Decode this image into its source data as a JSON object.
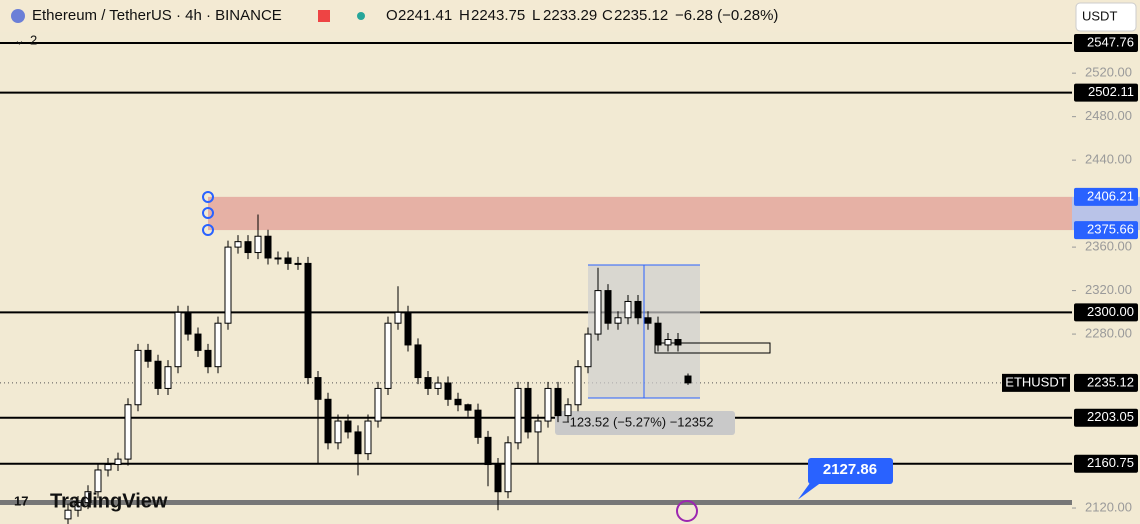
{
  "header": {
    "symbol": "Ethereum / TetherUS · 4h · BINANCE",
    "o_label": "O",
    "h_label": "H",
    "l_label": "L",
    "c_label": "C",
    "change": "−6.28 (−0.28%)",
    "currency": "USDT",
    "indicator_count": "2",
    "brand": "TradingView"
  },
  "chart_data": {
    "type": "candlestick",
    "open": [
      2110,
      2118,
      2125,
      2135,
      2155,
      2160,
      2165,
      2215,
      2265,
      2255,
      2230,
      2250,
      2300,
      2280,
      2265,
      2250,
      2290,
      2360,
      2365,
      2355,
      2370,
      2350,
      2350,
      2345,
      2345,
      2240,
      2220,
      2180,
      2200,
      2190,
      2170,
      2200,
      2230,
      2290,
      2300,
      2270,
      2240,
      2230,
      2235,
      2220,
      2215,
      2210,
      2185,
      2160,
      2135,
      2180,
      2230,
      2190,
      2200,
      2230,
      2205,
      2215,
      2250,
      2280,
      2320,
      2290,
      2295,
      2310,
      2295,
      2290,
      2270,
      2275,
      2241.41
    ],
    "high": [
      2124,
      2131,
      2141,
      2161,
      2166,
      2171,
      2221,
      2271,
      2271,
      2261,
      2256,
      2306,
      2306,
      2286,
      2271,
      2296,
      2366,
      2371,
      2371,
      2390,
      2376,
      2356,
      2356,
      2351,
      2351,
      2246,
      2226,
      2206,
      2206,
      2196,
      2206,
      2236,
      2296,
      2324,
      2306,
      2276,
      2246,
      2241,
      2241,
      2226,
      2216,
      2216,
      2191,
      2166,
      2186,
      2236,
      2236,
      2206,
      2236,
      2236,
      2221,
      2256,
      2286,
      2341,
      2326,
      2301,
      2316,
      2316,
      2301,
      2296,
      2281,
      2281,
      2243.75
    ],
    "low": [
      2104,
      2112,
      2119,
      2129,
      2149,
      2154,
      2159,
      2209,
      2249,
      2224,
      2224,
      2244,
      2274,
      2259,
      2244,
      2244,
      2284,
      2354,
      2349,
      2349,
      2344,
      2344,
      2339,
      2339,
      2234,
      2160,
      2174,
      2174,
      2184,
      2150,
      2164,
      2194,
      2224,
      2284,
      2264,
      2234,
      2224,
      2224,
      2214,
      2209,
      2204,
      2179,
      2140,
      2118,
      2129,
      2174,
      2184,
      2160,
      2194,
      2199,
      2199,
      2209,
      2244,
      2274,
      2284,
      2284,
      2289,
      2289,
      2284,
      2264,
      2264,
      2264,
      2233.29
    ],
    "close": [
      2118,
      2125,
      2135,
      2155,
      2160,
      2165,
      2215,
      2265,
      2255,
      2230,
      2250,
      2300,
      2280,
      2265,
      2250,
      2290,
      2360,
      2365,
      2355,
      2370,
      2350,
      2350,
      2345,
      2345,
      2240,
      2220,
      2180,
      2200,
      2190,
      2170,
      2200,
      2230,
      2290,
      2300,
      2270,
      2240,
      2230,
      2235,
      2220,
      2215,
      2210,
      2185,
      2160,
      2135,
      2180,
      2230,
      2190,
      2200,
      2230,
      2205,
      2215,
      2250,
      2280,
      2320,
      2290,
      2295,
      2310,
      2295,
      2290,
      2270,
      2275,
      2270,
      2235.12
    ],
    "up_color": "#ffffff",
    "down_color": "#000000",
    "ylim": [
      2105.3,
      2587.3
    ],
    "yticks": [
      {
        "value": 2520,
        "label": "2520.00"
      },
      {
        "value": 2480,
        "label": "2480.00"
      },
      {
        "value": 2440,
        "label": "2440.00"
      },
      {
        "value": 2360,
        "label": "2360.00"
      },
      {
        "value": 2320,
        "label": "2320.00"
      },
      {
        "value": 2280,
        "label": "2280.00"
      },
      {
        "value": 2120,
        "label": "2120.00"
      }
    ],
    "levels": [
      2547.76,
      2502.11,
      {
        "value": 2300,
        "label": "2300.00"
      },
      2203.05,
      2160.75
    ],
    "zone": [
      2406.21,
      2375.66
    ],
    "zone_color": "#e4a79c",
    "support": 2127.86,
    "symbol_tag": "ETHUSDT",
    "measure": "−123.52 (−5.27%) −12352"
  }
}
